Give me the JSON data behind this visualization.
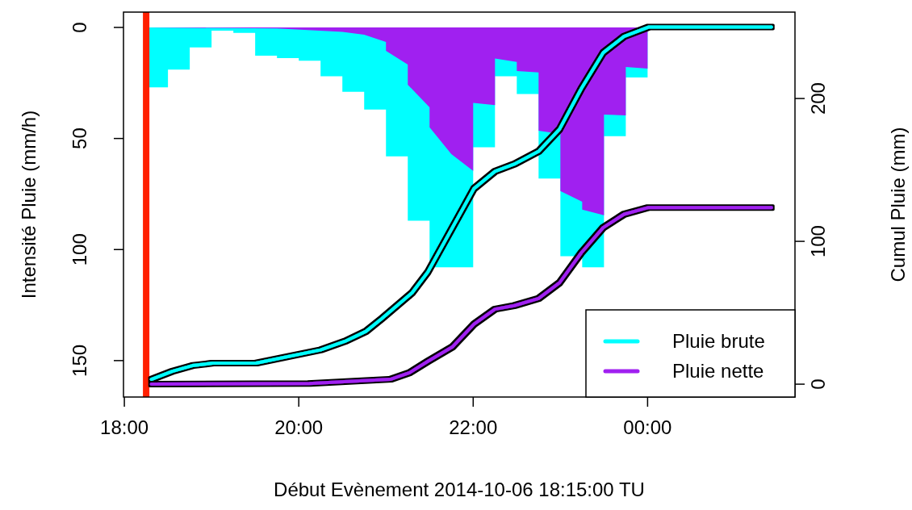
{
  "chart_data": {
    "type": "area",
    "xlabel": "Début Evènement 2014-10-06 18:15:00 TU",
    "ylabel": "Intensité Pluie (mm/h)",
    "y2label": "Cumul Pluie (mm)",
    "xlim": [
      17.99,
      25.69
    ],
    "xticks": [
      {
        "value": 18,
        "label": "18:00"
      },
      {
        "value": 20,
        "label": "20:00"
      },
      {
        "value": 22,
        "label": "22:00"
      },
      {
        "value": 24,
        "label": "00:00"
      }
    ],
    "ylim": [
      166.4,
      -6.9
    ],
    "yticks": [
      0,
      50,
      100,
      150
    ],
    "y2lim": [
      -9,
      260.5
    ],
    "y2ticks": [
      0,
      100,
      200
    ],
    "grid": false,
    "legend": "bottom right",
    "ref_lines": [
      {
        "axis": "x",
        "value": 18.25,
        "label": null,
        "color": "#ff2000"
      }
    ],
    "series": [
      {
        "color": "#00ffff",
        "x": [
          18.25,
          18.25,
          18.5,
          18.5,
          18.75,
          18.75,
          19,
          19,
          19.25,
          19.25,
          19.5,
          19.5,
          19.75,
          19.75,
          20,
          20,
          20.25,
          20.25,
          20.5,
          20.5,
          20.75,
          20.75,
          21,
          21,
          21.25,
          21.25,
          21.5,
          21.5,
          22,
          22,
          22.25,
          22.25,
          22.5,
          22.5,
          22.75,
          22.75,
          23,
          23,
          23.25,
          23.25,
          23.5,
          23.5,
          23.75,
          23.75,
          24,
          24
        ],
        "values": [
          0,
          27,
          27,
          19,
          19,
          9,
          9,
          1.5,
          1.5,
          2.5,
          2.5,
          12.7,
          12.7,
          13.8,
          13.8,
          15,
          15,
          22,
          22,
          29,
          29,
          37,
          37,
          58,
          58,
          87,
          87,
          108,
          108,
          54,
          54,
          22,
          22,
          30,
          30,
          68,
          68,
          103,
          103,
          108,
          108,
          49,
          49,
          22.5,
          22.5,
          0
        ]
      },
      {
        "color": "#a020f0",
        "x": [
          18.25,
          19.75,
          20.5,
          20.75,
          21,
          21,
          21.25,
          21.25,
          21.5,
          21.5,
          21.75,
          22,
          22,
          22.25,
          22.25,
          22.5,
          22.5,
          22.75,
          22.75,
          23,
          23,
          23.25,
          23.25,
          23.5,
          23.5,
          23.75,
          23.75,
          24,
          24
        ],
        "values": [
          0,
          0.5,
          2,
          3.3,
          6.5,
          10.5,
          16.7,
          25.8,
          36,
          45,
          57,
          64.6,
          34,
          35,
          14,
          15.5,
          19.6,
          20.3,
          46.5,
          48,
          73.7,
          78.5,
          82,
          84.6,
          39.2,
          39.6,
          17.8,
          18.5,
          0
        ]
      },
      {
        "type": "line",
        "axis": "y2",
        "name": "Pluie brute",
        "color": "#00ffff",
        "x": [
          18.31,
          18.55,
          18.78,
          19.01,
          19.51,
          20.25,
          20.53,
          20.77,
          20.95,
          21.3,
          21.48,
          22.01,
          22.25,
          22.47,
          22.75,
          22.99,
          23.24,
          23.49,
          23.73,
          24.01,
          25.42
        ],
        "values": [
          3.4,
          9,
          13,
          14.7,
          14.7,
          24,
          30,
          37,
          45.8,
          64,
          78.5,
          137,
          149,
          154,
          163,
          178.5,
          207,
          232,
          243.5,
          250,
          250
        ]
      },
      {
        "type": "line",
        "axis": "y2",
        "name": "Pluie nette",
        "color": "#a020f0",
        "x": [
          18.31,
          20.12,
          21.05,
          21.27,
          21.48,
          21.76,
          22.01,
          22.25,
          22.47,
          22.75,
          22.99,
          23.24,
          23.49,
          23.73,
          24.01,
          25.42
        ],
        "values": [
          0,
          0.5,
          3.4,
          8,
          16,
          26,
          42,
          52.5,
          55,
          60,
          71,
          92,
          109.6,
          119,
          123.7,
          123.7
        ]
      }
    ]
  }
}
